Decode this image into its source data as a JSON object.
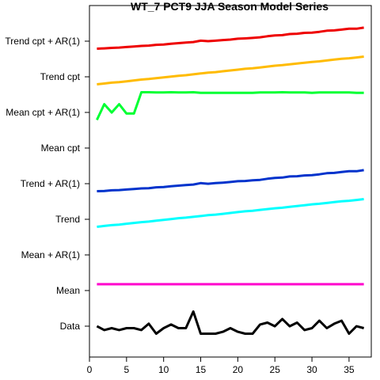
{
  "chart_data": {
    "type": "line",
    "title": "WT_7 PCT9 JJA Season Model Series",
    "xlabel": "",
    "ylabel": "",
    "xlim": [
      0,
      38
    ],
    "xticks": [
      0,
      5,
      10,
      15,
      20,
      25,
      30,
      35
    ],
    "grid": false,
    "legend": "none",
    "series": [
      {
        "name": "Data",
        "color": "#000000",
        "values": [
          0.27,
          0.13,
          0.2,
          0.13,
          0.2,
          0.2,
          0.13,
          0.36,
          0.0,
          0.2,
          0.33,
          0.2,
          0.2,
          0.8,
          0.0,
          0.0,
          0.0,
          0.07,
          0.2,
          0.07,
          0.0,
          0.0,
          0.33,
          0.4,
          0.27,
          0.53,
          0.27,
          0.4,
          0.13,
          0.2,
          0.47,
          0.2,
          0.36,
          0.47,
          0.0,
          0.27,
          0.2
        ]
      },
      {
        "name": "Mean",
        "color": "#ff00cc",
        "values": [
          0.5,
          0.5,
          0.5,
          0.5,
          0.5,
          0.5,
          0.5,
          0.5,
          0.5,
          0.5,
          0.5,
          0.5,
          0.5,
          0.5,
          0.5,
          0.5,
          0.5,
          0.5,
          0.5,
          0.5,
          0.5,
          0.5,
          0.5,
          0.5,
          0.5,
          0.5,
          0.5,
          0.5,
          0.5,
          0.5,
          0.5,
          0.5,
          0.5,
          0.5,
          0.5,
          0.5,
          0.5
        ]
      },
      {
        "name": "Mean + AR(1)",
        "color": "#000000",
        "values": []
      },
      {
        "name": "Trend",
        "color": "#00ffff",
        "values": [
          0.0,
          0.03,
          0.06,
          0.08,
          0.11,
          0.14,
          0.17,
          0.19,
          0.22,
          0.25,
          0.28,
          0.31,
          0.33,
          0.36,
          0.39,
          0.42,
          0.44,
          0.47,
          0.5,
          0.53,
          0.56,
          0.58,
          0.61,
          0.64,
          0.67,
          0.69,
          0.72,
          0.75,
          0.78,
          0.81,
          0.83,
          0.86,
          0.89,
          0.92,
          0.94,
          0.97,
          1.0
        ]
      },
      {
        "name": "Trend + AR(1)",
        "color": "#0033cc",
        "values": [
          0.0,
          0.02,
          0.06,
          0.08,
          0.12,
          0.16,
          0.2,
          0.22,
          0.28,
          0.3,
          0.36,
          0.4,
          0.44,
          0.48,
          0.58,
          0.54,
          0.58,
          0.62,
          0.66,
          0.72,
          0.74,
          0.78,
          0.82,
          0.9,
          0.96,
          0.98,
          1.06,
          1.08,
          1.14,
          1.16,
          1.22,
          1.3,
          1.32,
          1.38,
          1.44,
          1.44,
          1.52
        ]
      },
      {
        "name": "Mean cpt",
        "color": "#000000",
        "values": []
      },
      {
        "name": "Mean cpt + AR(1)",
        "color": "#00ff33",
        "values": [
          0.0,
          0.57,
          0.27,
          0.57,
          0.23,
          0.23,
          1.0,
          1.0,
          0.99,
          0.99,
          1.0,
          0.99,
          0.99,
          1.0,
          0.98,
          0.98,
          0.98,
          0.98,
          0.98,
          0.98,
          0.98,
          0.98,
          0.99,
          0.99,
          0.99,
          1.0,
          0.99,
          0.99,
          0.99,
          0.98,
          0.99,
          0.99,
          0.99,
          0.99,
          0.99,
          0.98,
          0.98
        ]
      },
      {
        "name": "Trend cpt",
        "color": "#ffbb00",
        "values": [
          0.0,
          0.03,
          0.06,
          0.08,
          0.11,
          0.14,
          0.17,
          0.19,
          0.22,
          0.25,
          0.28,
          0.31,
          0.33,
          0.36,
          0.39,
          0.42,
          0.44,
          0.47,
          0.5,
          0.53,
          0.56,
          0.58,
          0.61,
          0.64,
          0.67,
          0.69,
          0.72,
          0.75,
          0.78,
          0.81,
          0.83,
          0.86,
          0.89,
          0.92,
          0.94,
          0.97,
          1.0
        ]
      },
      {
        "name": "Trend cpt + AR(1)",
        "color": "#ee0000",
        "values": [
          0.0,
          0.02,
          0.06,
          0.08,
          0.12,
          0.16,
          0.2,
          0.22,
          0.28,
          0.3,
          0.36,
          0.4,
          0.44,
          0.48,
          0.58,
          0.54,
          0.58,
          0.62,
          0.66,
          0.72,
          0.74,
          0.78,
          0.82,
          0.9,
          0.96,
          0.98,
          1.06,
          1.08,
          1.14,
          1.16,
          1.22,
          1.3,
          1.32,
          1.38,
          1.44,
          1.44,
          1.52
        ]
      }
    ]
  }
}
